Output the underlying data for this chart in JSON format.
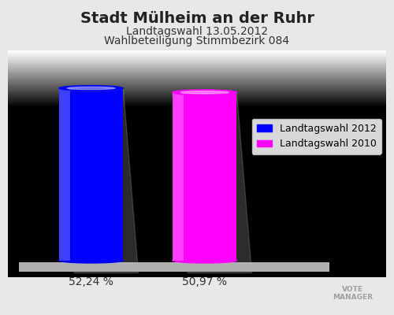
{
  "title": "Stadt Mülheim an der Ruhr",
  "subtitle1": "Landtagswahl 13.05.2012",
  "subtitle2": "Wahlbeteiligung Stimmbezirk 084",
  "categories": [
    "Landtagswahl 2012",
    "Landtagswahl 2010"
  ],
  "values": [
    52.24,
    50.97
  ],
  "bar_colors": [
    "#0000ff",
    "#ff00ff"
  ],
  "bar_labels": [
    "52,24 %",
    "50,97 %"
  ],
  "background_color_top": "#ffffff",
  "background_color_bottom": "#d8d8d8",
  "title_fontsize": 14,
  "subtitle_fontsize": 10,
  "label_fontsize": 10,
  "legend_fontsize": 9
}
